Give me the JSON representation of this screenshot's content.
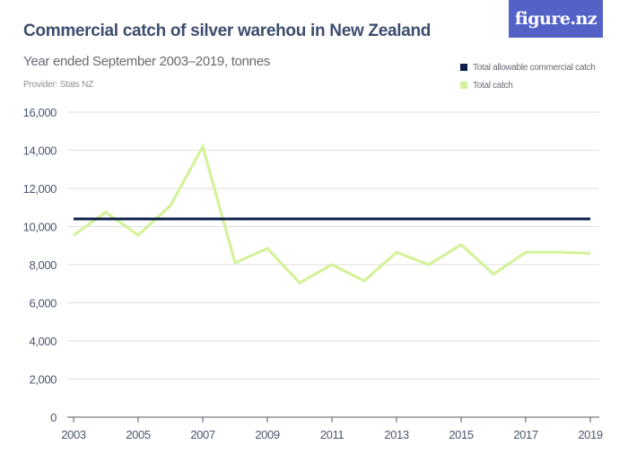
{
  "header": {
    "title": "Commercial catch of silver warehou in New Zealand",
    "subtitle": "Year ended September 2003–2019, tonnes",
    "provider": "Provider: Stats NZ",
    "logo": "figure.nz"
  },
  "legend": {
    "items": [
      {
        "label": "Total allowable commercial catch",
        "color": "#0d1f4a"
      },
      {
        "label": "Total catch",
        "color": "#d4f29a"
      }
    ]
  },
  "chart_data": {
    "type": "line",
    "title": "Commercial catch of silver warehou in New Zealand",
    "subtitle": "Year ended September 2003–2019, tonnes",
    "xlabel": "",
    "ylabel": "tonnes",
    "x": [
      2003,
      2004,
      2005,
      2006,
      2007,
      2008,
      2009,
      2010,
      2011,
      2012,
      2013,
      2014,
      2015,
      2016,
      2017,
      2018,
      2019
    ],
    "x_tick_labels": [
      "2003",
      "2005",
      "2007",
      "2009",
      "2011",
      "2013",
      "2015",
      "2017",
      "2019"
    ],
    "y_tick_labels": [
      "0",
      "2,000",
      "4,000",
      "6,000",
      "8,000",
      "10,000",
      "12,000",
      "14,000",
      "16,000"
    ],
    "ylim": [
      0,
      16000
    ],
    "grid": true,
    "legend_position": "top-right",
    "series": [
      {
        "name": "Total allowable commercial catch",
        "color": "#0d1f4a",
        "values": [
          10400,
          10400,
          10400,
          10400,
          10400,
          10400,
          10400,
          10400,
          10400,
          10400,
          10400,
          10400,
          10400,
          10400,
          10400,
          10400,
          10400
        ]
      },
      {
        "name": "Total catch",
        "color": "#d4f29a",
        "values": [
          9550,
          10750,
          9550,
          11100,
          14200,
          8100,
          8850,
          7050,
          8000,
          7150,
          8650,
          8000,
          9050,
          7500,
          8650,
          8650,
          8600
        ]
      }
    ]
  }
}
